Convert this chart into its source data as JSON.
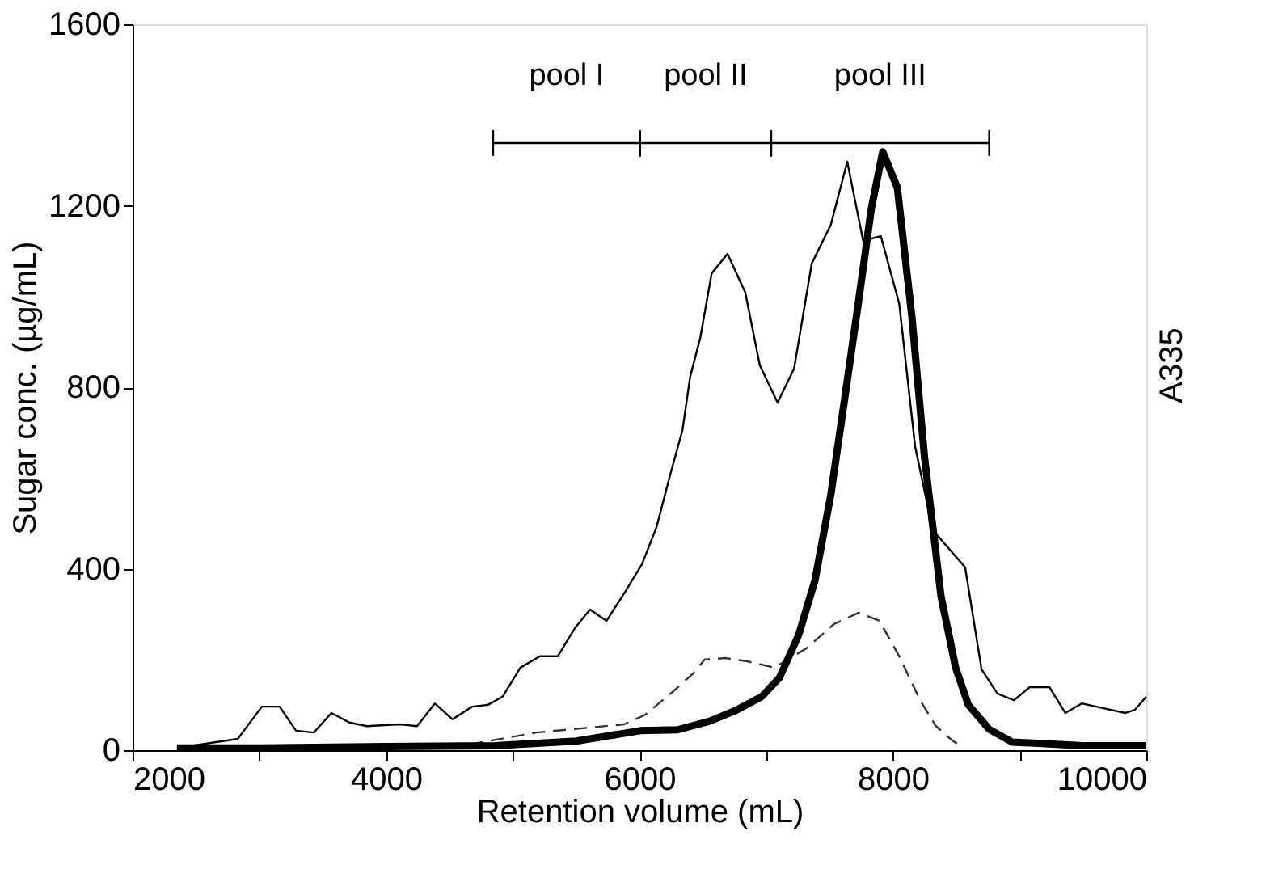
{
  "chart_data": {
    "type": "line",
    "xlabel": "Retention volume (mL)",
    "ylabel": "Sugar conc. (µg/mL)",
    "y2label": "A335",
    "xlim": [
      2000,
      10000
    ],
    "xticks": [
      2000,
      {
        "value": 3000,
        "label": null
      },
      4000,
      {
        "value": 5000,
        "label": null
      },
      6000,
      {
        "value": 7000,
        "label": null
      },
      8000,
      {
        "value": 9000,
        "label": null
      },
      10000
    ],
    "ylim": [
      0,
      1600
    ],
    "yticks": [
      0,
      400,
      800,
      1200,
      1600
    ],
    "grid": false,
    "marker": "none",
    "annotations": [
      "pool I",
      "pool II",
      "pool III"
    ],
    "series": [
      {
        "color": "#000000",
        "line_style": "solid",
        "x": [
          2350,
          2830,
          3020,
          3160,
          3290,
          3430,
          3570,
          3710,
          3850,
          4105,
          4245,
          4385,
          4525,
          4680,
          4805,
          4920,
          5060,
          5215,
          5355,
          5495,
          5610,
          5740,
          5880,
          6020,
          6135,
          6235,
          6340,
          6400,
          6480,
          6570,
          6695,
          6835,
          6950,
          7090,
          7220,
          7360,
          7510,
          7640,
          7765,
          7905,
          8050,
          8175,
          8315,
          8570,
          8700,
          8825,
          8955,
          9080,
          9235,
          9360,
          9490,
          9655,
          9835,
          9910,
          10000
        ],
        "values": [
          5,
          25,
          96,
          96,
          43,
          39,
          82,
          61,
          53,
          57,
          53,
          103,
          68,
          96,
          100,
          118,
          182,
          207,
          207,
          271,
          310,
          285,
          346,
          410,
          492,
          599,
          706,
          823,
          909,
          1051,
          1094,
          1009,
          848,
          766,
          841,
          1073,
          1158,
          1297,
          1123,
          1133,
          984,
          670,
          485,
          403,
          178,
          125,
          110,
          139,
          139,
          82,
          103,
          93,
          82,
          89,
          118
        ]
      },
      {
        "color": "#333333",
        "line_style": "dashed",
        "x": [
          4500,
          5190,
          5880,
          6045,
          6260,
          6430,
          6515,
          6680,
          6850,
          7065,
          7320,
          7535,
          7730,
          7895,
          8050,
          8215,
          8340,
          8470,
          8560
        ],
        "values": [
          5,
          39,
          57,
          78,
          128,
          171,
          200,
          203,
          196,
          182,
          225,
          278,
          303,
          285,
          207,
          110,
          53,
          21,
          5
        ]
      },
      {
        "color": "#000000",
        "line_style": "solid",
        "x": [
          2350,
          3000,
          4000,
          4860,
          5500,
          6005,
          6300,
          6555,
          6770,
          6965,
          7105,
          7255,
          7385,
          7510,
          7615,
          7730,
          7830,
          7920,
          8035,
          8150,
          8250,
          8380,
          8495,
          8595,
          8760,
          8940,
          9500,
          10000
        ],
        "values": [
          5,
          5,
          8,
          10,
          20,
          43,
          45,
          64,
          89,
          118,
          160,
          253,
          374,
          563,
          766,
          991,
          1194,
          1319,
          1240,
          955,
          645,
          339,
          182,
          100,
          46,
          18,
          10,
          10
        ]
      },
      {
        "color": "#000000",
        "line_style": "solid",
        "x": [
          4845,
          4845,
          4845,
          6005,
          6005,
          6005,
          6005,
          7040,
          7040,
          7040,
          7040,
          8760,
          8760,
          8760
        ],
        "values": [
          1310,
          1365,
          1338,
          1338,
          1365,
          1310,
          1338,
          1338,
          1365,
          1310,
          1338,
          1338,
          1365,
          1310
        ]
      }
    ]
  }
}
